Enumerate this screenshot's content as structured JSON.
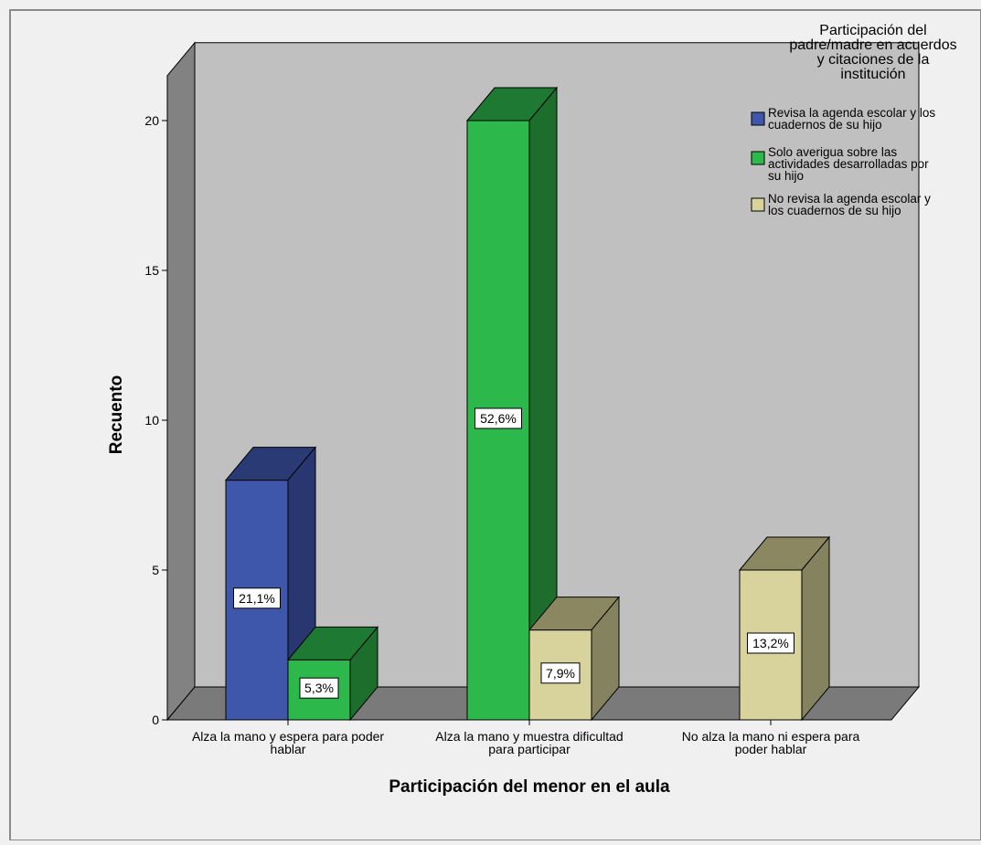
{
  "chart_data": {
    "type": "bar",
    "xlabel": "Participación del menor en el aula",
    "ylabel": "Recuento",
    "ylim": [
      0,
      21.5
    ],
    "yticks": [
      0,
      5,
      10,
      15,
      20
    ],
    "grid": false,
    "legend_position": "top-right",
    "categories": [
      [
        "Alza la mano y espera para poder",
        "hablar"
      ],
      [
        "Alza la mano y muestra dificultad",
        "para participar"
      ],
      [
        "No alza la mano ni espera para",
        "poder hablar"
      ]
    ],
    "legend": {
      "title": [
        "Participación del",
        "padre/madre en acuerdos",
        "y citaciones de la",
        "institución"
      ],
      "entries": [
        {
          "label": [
            "Revisa la agenda escolar y los",
            "cuadernos de su hijo"
          ],
          "color": "#3f57aa"
        },
        {
          "label": [
            "Solo averigua sobre las",
            "actividades desarrolladas por",
            "su hijo"
          ],
          "color": "#2db84b"
        },
        {
          "label": [
            "No revisa la agenda escolar y",
            "los cuadernos de su hijo"
          ],
          "color": "#d8d39c"
        }
      ]
    },
    "series": [
      {
        "values": [
          8,
          0,
          0
        ],
        "labels": [
          "21,1%",
          "",
          ""
        ]
      },
      {
        "values": [
          2,
          20,
          0
        ],
        "labels": [
          "5,3%",
          "52,6%",
          ""
        ]
      },
      {
        "values": [
          0,
          3,
          5
        ],
        "labels": [
          "",
          "7,9%",
          "13,2%"
        ]
      }
    ]
  },
  "colors": {
    "background": "#f0f0f0",
    "wall_back": "#c0c0c0",
    "wall_side": "#828282",
    "floor": "#7a7a7a",
    "series_front": [
      "#3f57aa",
      "#2db84b",
      "#d8d39c"
    ],
    "series_top": [
      "#2a3a75",
      "#1e7a32",
      "#8b8760"
    ],
    "series_side": [
      "#283770",
      "#1d6e2c",
      "#858260"
    ]
  }
}
